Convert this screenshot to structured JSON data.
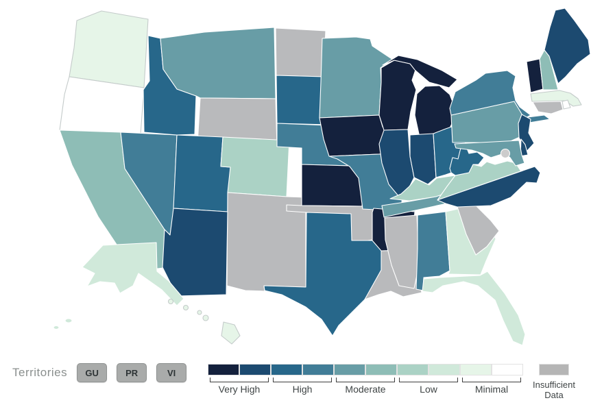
{
  "legend": {
    "colors": [
      "#14213d",
      "#1c4a70",
      "#27678a",
      "#417d97",
      "#689da6",
      "#8ebdb6",
      "#abd2c5",
      "#d0e9da",
      "#e6f5e8",
      "#ffffff"
    ],
    "groups": [
      {
        "label": "Very High"
      },
      {
        "label": "High"
      },
      {
        "label": "Moderate"
      },
      {
        "label": "Low"
      },
      {
        "label": "Minimal"
      }
    ],
    "insufficient": {
      "label_line1": "Insufficient",
      "label_line2": "Data",
      "color": "#b5b5b5"
    }
  },
  "territories": {
    "label": "Territories",
    "items": [
      {
        "code": "GU",
        "name": "Guam",
        "level": "Insufficient Data",
        "color": "#a9abaa"
      },
      {
        "code": "PR",
        "name": "Puerto Rico",
        "level": "Insufficient Data",
        "color": "#a9abaa"
      },
      {
        "code": "VI",
        "name": "Virgin Islands",
        "level": "Insufficient Data",
        "color": "#a9abaa"
      }
    ]
  },
  "map": {
    "insufficient_color": "#b9babc",
    "states": [
      {
        "abbr": "WA",
        "name": "Washington",
        "level": "Minimal",
        "color": "#e6f5e8"
      },
      {
        "abbr": "OR",
        "name": "Oregon",
        "level": "Minimal",
        "color": "#ffffff"
      },
      {
        "abbr": "CA",
        "name": "California",
        "level": "Moderate",
        "color": "#8ebdb6"
      },
      {
        "abbr": "NV",
        "name": "Nevada",
        "level": "High",
        "color": "#417d97"
      },
      {
        "abbr": "ID",
        "name": "Idaho",
        "level": "High",
        "color": "#27678a"
      },
      {
        "abbr": "MT",
        "name": "Montana",
        "level": "Moderate",
        "color": "#689da6"
      },
      {
        "abbr": "WY",
        "name": "Wyoming",
        "level": "Insufficient Data",
        "color": "#b9babc"
      },
      {
        "abbr": "UT",
        "name": "Utah",
        "level": "High",
        "color": "#27678a"
      },
      {
        "abbr": "CO",
        "name": "Colorado",
        "level": "Low",
        "color": "#abd2c5"
      },
      {
        "abbr": "NM",
        "name": "New Mexico",
        "level": "Insufficient Data",
        "color": "#b9babc"
      },
      {
        "abbr": "AZ",
        "name": "Arizona",
        "level": "Very High",
        "color": "#1c4a70"
      },
      {
        "abbr": "ND",
        "name": "North Dakota",
        "level": "Insufficient Data",
        "color": "#b9babc"
      },
      {
        "abbr": "SD",
        "name": "South Dakota",
        "level": "High",
        "color": "#27678a"
      },
      {
        "abbr": "NE",
        "name": "Nebraska",
        "level": "High",
        "color": "#417d97"
      },
      {
        "abbr": "KS",
        "name": "Kansas",
        "level": "Very High",
        "color": "#14213d"
      },
      {
        "abbr": "OK",
        "name": "Oklahoma",
        "level": "Insufficient Data",
        "color": "#b9babc"
      },
      {
        "abbr": "TX",
        "name": "Texas",
        "level": "High",
        "color": "#27678a"
      },
      {
        "abbr": "MN",
        "name": "Minnesota",
        "level": "Moderate",
        "color": "#689da6"
      },
      {
        "abbr": "IA",
        "name": "Iowa",
        "level": "Very High",
        "color": "#14213d"
      },
      {
        "abbr": "MO",
        "name": "Missouri",
        "level": "High",
        "color": "#417d97"
      },
      {
        "abbr": "AR",
        "name": "Arkansas",
        "level": "Very High",
        "color": "#14213d"
      },
      {
        "abbr": "LA",
        "name": "Louisiana",
        "level": "Insufficient Data",
        "color": "#b9babc"
      },
      {
        "abbr": "WI",
        "name": "Wisconsin",
        "level": "Very High",
        "color": "#14213d"
      },
      {
        "abbr": "MI",
        "name": "Michigan",
        "level": "Very High",
        "color": "#14213d"
      },
      {
        "abbr": "IL",
        "name": "Illinois",
        "level": "Very High",
        "color": "#1c4a70"
      },
      {
        "abbr": "IN",
        "name": "Indiana",
        "level": "Very High",
        "color": "#1c4a70"
      },
      {
        "abbr": "OH",
        "name": "Ohio",
        "level": "High",
        "color": "#27678a"
      },
      {
        "abbr": "KY",
        "name": "Kentucky",
        "level": "Low",
        "color": "#abd2c5"
      },
      {
        "abbr": "TN",
        "name": "Tennessee",
        "level": "Moderate",
        "color": "#689da6"
      },
      {
        "abbr": "MS",
        "name": "Mississippi",
        "level": "Insufficient Data",
        "color": "#b9babc"
      },
      {
        "abbr": "AL",
        "name": "Alabama",
        "level": "High",
        "color": "#417d97"
      },
      {
        "abbr": "GA",
        "name": "Georgia",
        "level": "Low",
        "color": "#d0e9da"
      },
      {
        "abbr": "FL",
        "name": "Florida",
        "level": "Low",
        "color": "#d0e9da"
      },
      {
        "abbr": "SC",
        "name": "South Carolina",
        "level": "Insufficient Data",
        "color": "#b9babc"
      },
      {
        "abbr": "NC",
        "name": "North Carolina",
        "level": "Very High",
        "color": "#1c4a70"
      },
      {
        "abbr": "VA",
        "name": "Virginia",
        "level": "Low",
        "color": "#abd2c5"
      },
      {
        "abbr": "WV",
        "name": "West Virginia",
        "level": "High",
        "color": "#27678a"
      },
      {
        "abbr": "PA",
        "name": "Pennsylvania",
        "level": "Moderate",
        "color": "#689da6"
      },
      {
        "abbr": "NY",
        "name": "New York",
        "level": "High",
        "color": "#417d97"
      },
      {
        "abbr": "NJ",
        "name": "New Jersey",
        "level": "Very High",
        "color": "#1c4a70"
      },
      {
        "abbr": "VT",
        "name": "Vermont",
        "level": "Very High",
        "color": "#14213d"
      },
      {
        "abbr": "NH",
        "name": "New Hampshire",
        "level": "Moderate",
        "color": "#8ebdb6"
      },
      {
        "abbr": "ME",
        "name": "Maine",
        "level": "Very High",
        "color": "#1c4a70"
      },
      {
        "abbr": "MA",
        "name": "Massachusetts",
        "level": "Minimal",
        "color": "#e6f5e8"
      },
      {
        "abbr": "RI",
        "name": "Rhode Island",
        "level": "Minimal",
        "color": "#ffffff"
      },
      {
        "abbr": "CT",
        "name": "Connecticut",
        "level": "Insufficient Data",
        "color": "#b9babc"
      },
      {
        "abbr": "DE",
        "name": "Delaware",
        "level": "Very High",
        "color": "#1c4a70"
      },
      {
        "abbr": "MD",
        "name": "Maryland",
        "level": "Moderate",
        "color": "#689da6"
      },
      {
        "abbr": "DC",
        "name": "District of Columbia",
        "level": "Insufficient Data",
        "color": "#cccccc"
      },
      {
        "abbr": "AK",
        "name": "Alaska",
        "level": "Low",
        "color": "#d0e9da"
      },
      {
        "abbr": "HI",
        "name": "Hawaii",
        "level": "Minimal",
        "color": "#e6f5e8"
      }
    ]
  }
}
